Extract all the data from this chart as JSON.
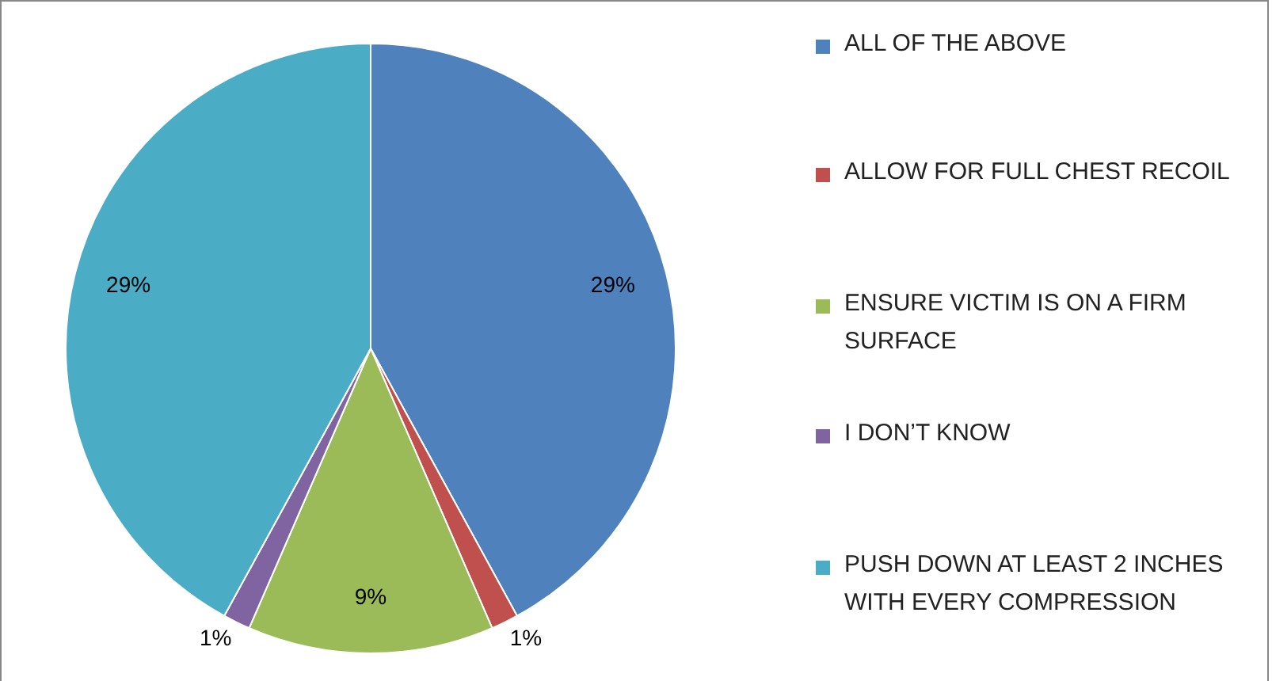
{
  "chart_data": {
    "type": "pie",
    "categories": [
      "ALL OF THE ABOVE",
      "ALLOW FOR FULL CHEST RECOIL",
      "ENSURE VICTIM IS ON A FIRM SURFACE",
      "I DON’T KNOW",
      "PUSH DOWN AT LEAST 2 INCHES WITH EVERY COMPRESSION"
    ],
    "values": [
      29,
      1,
      9,
      1,
      29
    ],
    "colors": [
      "#4f81bd",
      "#c0504d",
      "#9bbb59",
      "#8064a2",
      "#4bacc6"
    ],
    "value_labels": [
      "29%",
      "1%",
      "9%",
      "1%",
      "29%"
    ],
    "legend": "right"
  }
}
